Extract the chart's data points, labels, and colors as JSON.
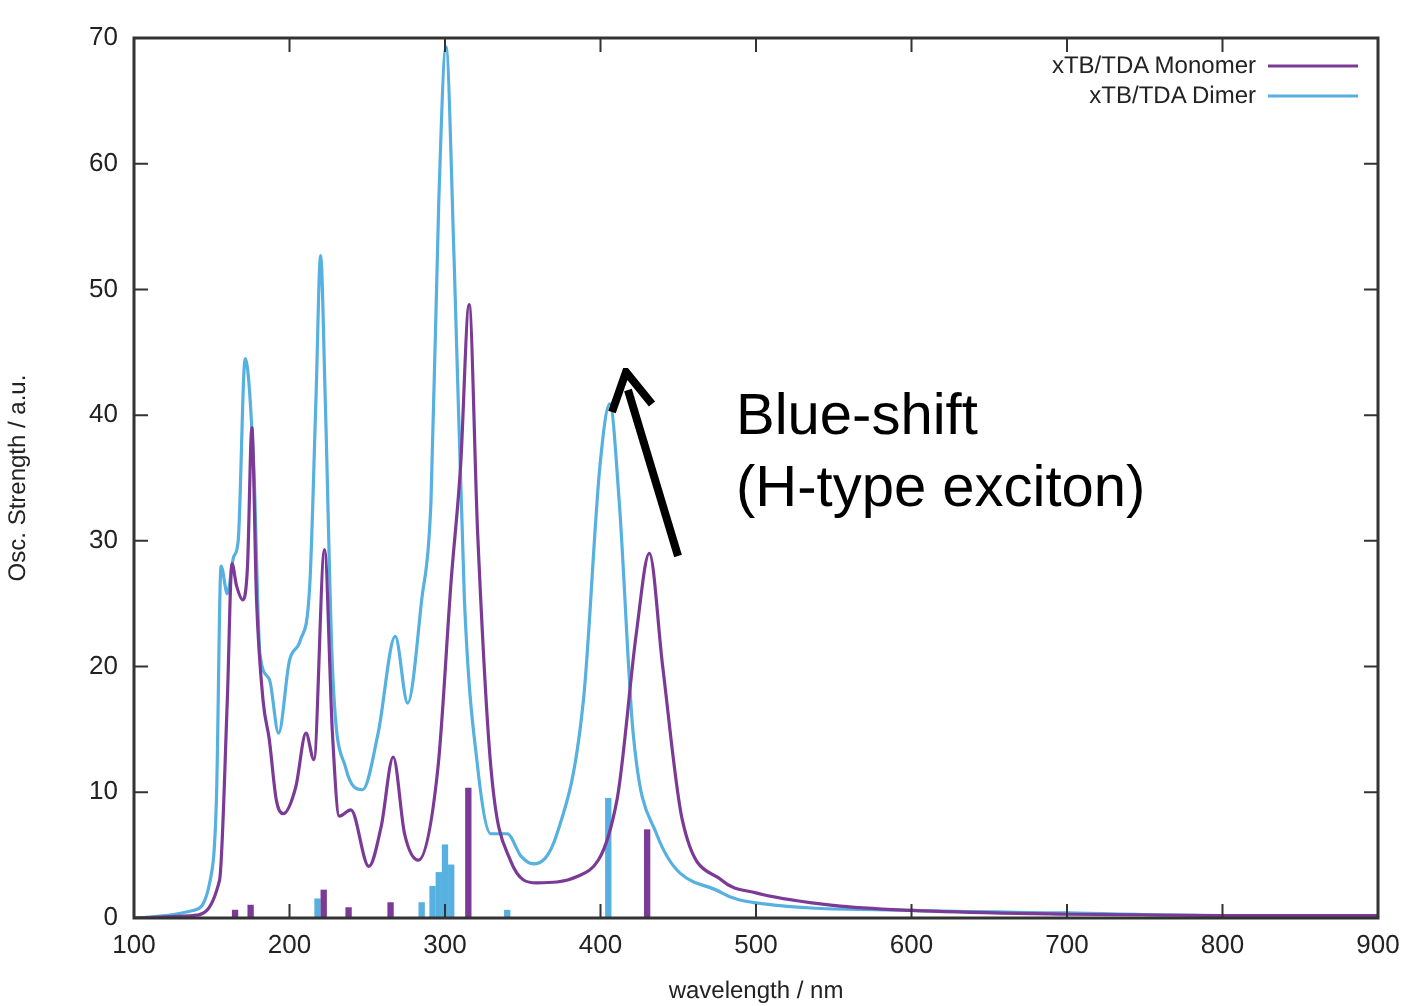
{
  "chart_data": {
    "type": "line",
    "xlabel": "wavelength / nm",
    "ylabel": "Osc. Strength / a.u.",
    "xlim": [
      100,
      900
    ],
    "xticks": [
      100,
      200,
      300,
      400,
      500,
      600,
      700,
      800,
      900
    ],
    "ylim": [
      0,
      70
    ],
    "yticks": [
      0,
      10,
      20,
      30,
      40,
      50,
      60,
      70
    ],
    "grid": false,
    "legend": "top right",
    "marker": "none",
    "line_style": "solid",
    "annotations": [
      "Blue-shift\n(H-type exciton)"
    ],
    "series": [
      {
        "name": "xTB/TDA Monomer",
        "color": "#7b3a96",
        "x": [
          100,
          138,
          155,
          160,
          163,
          166,
          170,
          173,
          175.8,
          178.8,
          183,
          187,
          191.5,
          196,
          204,
          210.6,
          215.7,
          222.5,
          227.6,
          232,
          239.5,
          251,
          259,
          266.7,
          274,
          283,
          295.5,
          304,
          310,
          315.5,
          321,
          329.5,
          342,
          359,
          385,
          410.6,
          423,
          431.4,
          440,
          452.6,
          478,
          500,
          550,
          600,
          700,
          800,
          900
        ],
        "values": [
          0,
          0.2,
          3,
          17.3,
          28.2,
          26.4,
          25.3,
          28,
          39,
          25.3,
          17.3,
          14.2,
          9.4,
          8.3,
          10.4,
          14.7,
          12.6,
          29.3,
          14.7,
          8.1,
          8.6,
          4.1,
          7.3,
          12.8,
          6.7,
          4.6,
          12,
          26.9,
          35.9,
          48.8,
          30.6,
          12,
          4.6,
          2.8,
          3.3,
          9.4,
          22.6,
          29,
          20,
          7.8,
          3,
          2,
          1,
          0.6,
          0.3,
          0.2,
          0.2
        ]
      },
      {
        "name": "xTB/TDA Dimer",
        "color": "#56b0e0",
        "x": [
          100,
          138,
          149,
          153,
          156,
          160,
          164,
          167,
          171.5,
          177,
          181,
          187,
          193,
          200,
          207,
          213,
          217,
          220,
          223,
          227.6,
          236,
          247,
          257,
          268,
          276,
          285,
          291,
          296,
          300.6,
          306,
          312.5,
          321,
          329.5,
          340,
          349,
          357,
          372,
          389,
          399.6,
          406,
          412,
          421,
          436,
          478,
          500,
          600,
          700,
          800,
          900
        ],
        "values": [
          0,
          0.6,
          3,
          9.4,
          28,
          25.8,
          28.7,
          30,
          44.5,
          35.9,
          21,
          19,
          14.7,
          20.5,
          22.1,
          26.4,
          41.2,
          52.7,
          41.2,
          20,
          12,
          10.2,
          14.7,
          22.4,
          17.1,
          25.3,
          33.2,
          57,
          69.3,
          51.8,
          25.3,
          12,
          6.7,
          6.7,
          4.9,
          4.3,
          6.7,
          17.3,
          35.9,
          40.9,
          33.2,
          14.7,
          6.7,
          2,
          1.2,
          0.6,
          0.4,
          0.2,
          0.2
        ]
      },
      {
        "type": "bar",
        "color": "#7b3a96",
        "x": [
          165,
          175,
          222,
          238,
          265,
          315,
          430
        ],
        "values": [
          0.6,
          1,
          2.2,
          0.8,
          1.2,
          10.3,
          7
        ]
      },
      {
        "type": "bar",
        "color": "#56b0e0",
        "x": [
          218,
          285,
          292,
          296,
          300,
          304,
          340,
          405
        ],
        "values": [
          1.5,
          1.2,
          2.5,
          3.6,
          5.8,
          4.2,
          0.6,
          9.5
        ]
      }
    ]
  }
}
